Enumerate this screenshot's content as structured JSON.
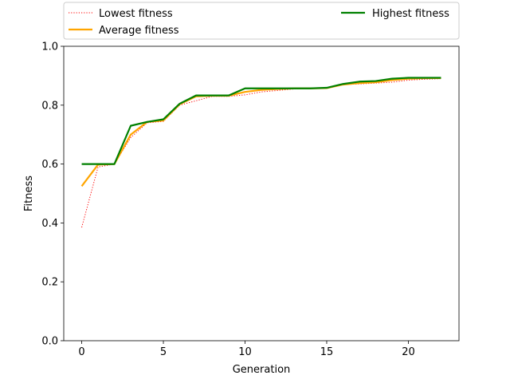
{
  "chart_data": {
    "type": "line",
    "title": "",
    "xlabel": "Generation",
    "ylabel": "Fitness",
    "xlim": [
      -1.1,
      23.1
    ],
    "ylim": [
      0.0,
      1.0
    ],
    "xticks": [
      0,
      5,
      10,
      15,
      20
    ],
    "yticks": [
      0.0,
      0.2,
      0.4,
      0.6,
      0.8,
      1.0
    ],
    "grid": false,
    "legend_position": "top, above plot (two columns)",
    "x": [
      0,
      1,
      2,
      3,
      4,
      5,
      6,
      7,
      8,
      9,
      10,
      11,
      12,
      13,
      14,
      15,
      16,
      17,
      18,
      19,
      20,
      21,
      22
    ],
    "series": [
      {
        "name": "Lowest fitness",
        "color": "#ff0000",
        "style": "dotted",
        "values": [
          0.385,
          0.59,
          0.6,
          0.69,
          0.74,
          0.745,
          0.8,
          0.815,
          0.83,
          0.83,
          0.835,
          0.845,
          0.85,
          0.855,
          0.857,
          0.858,
          0.87,
          0.872,
          0.875,
          0.878,
          0.885,
          0.888,
          0.89
        ]
      },
      {
        "name": "Average fitness",
        "color": "#ffa500",
        "style": "solid",
        "values": [
          0.525,
          0.598,
          0.6,
          0.7,
          0.743,
          0.748,
          0.803,
          0.83,
          0.832,
          0.832,
          0.845,
          0.852,
          0.855,
          0.857,
          0.857,
          0.858,
          0.87,
          0.875,
          0.878,
          0.885,
          0.89,
          0.892,
          0.892
        ]
      },
      {
        "name": "Highest fitness",
        "color": "#008000",
        "style": "solid",
        "values": [
          0.6,
          0.6,
          0.6,
          0.73,
          0.743,
          0.752,
          0.805,
          0.833,
          0.833,
          0.833,
          0.857,
          0.857,
          0.857,
          0.857,
          0.857,
          0.859,
          0.872,
          0.88,
          0.882,
          0.89,
          0.893,
          0.893,
          0.893
        ]
      }
    ]
  }
}
